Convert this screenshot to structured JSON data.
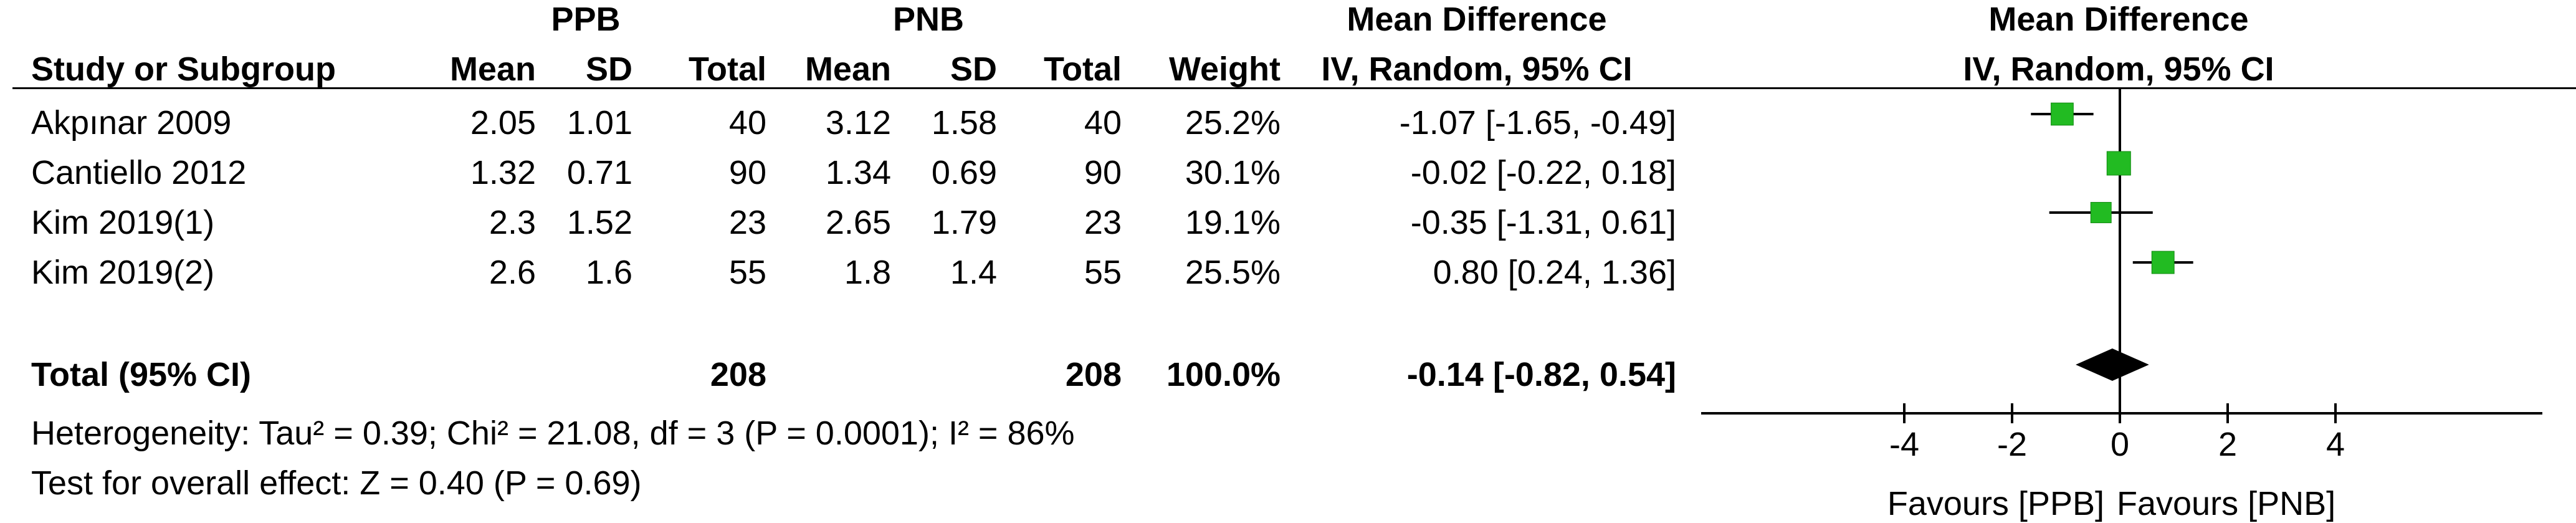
{
  "headers": {
    "group1": "PPB",
    "group2": "PNB",
    "effect_left": "Mean Difference",
    "effect_right": "Mean Difference",
    "method_left": "IV, Random, 95% CI",
    "method_right": "IV, Random, 95% CI",
    "cols": {
      "study": "Study or Subgroup",
      "mean1": "Mean",
      "sd1": "SD",
      "total1": "Total",
      "mean2": "Mean",
      "sd2": "SD",
      "total2": "Total",
      "weight": "Weight"
    }
  },
  "studies": [
    {
      "name": "Akpınar 2009",
      "mean1": "2.05",
      "sd1": "1.01",
      "total1": "40",
      "mean2": "3.12",
      "sd2": "1.58",
      "total2": "40",
      "weight": "25.2%",
      "ci_text": "-1.07 [-1.65, -0.49]"
    },
    {
      "name": "Cantiello 2012",
      "mean1": "1.32",
      "sd1": "0.71",
      "total1": "90",
      "mean2": "1.34",
      "sd2": "0.69",
      "total2": "90",
      "weight": "30.1%",
      "ci_text": "-0.02 [-0.22, 0.18]"
    },
    {
      "name": "Kim 2019(1)",
      "mean1": "2.3",
      "sd1": "1.52",
      "total1": "23",
      "mean2": "2.65",
      "sd2": "1.79",
      "total2": "23",
      "weight": "19.1%",
      "ci_text": "-0.35 [-1.31, 0.61]"
    },
    {
      "name": "Kim 2019(2)",
      "mean1": "2.6",
      "sd1": "1.6",
      "total1": "55",
      "mean2": "1.8",
      "sd2": "1.4",
      "total2": "55",
      "weight": "25.5%",
      "ci_text": "0.80 [0.24, 1.36]"
    }
  ],
  "total": {
    "label": "Total (95% CI)",
    "total1": "208",
    "total2": "208",
    "weight": "100.0%",
    "ci_text": "-0.14 [-0.82, 0.54]"
  },
  "heterogeneity": "Heterogeneity: Tau² = 0.39; Chi² = 21.08, df = 3 (P = 0.0001); I² = 86%",
  "overall_effect": "Test for overall effect: Z = 0.40 (P = 0.69)",
  "axis": {
    "favours_left": "Favours [PPB]",
    "favours_right": "Favours [PNB]"
  },
  "chart_data": {
    "type": "forest",
    "xlim": [
      -4,
      4
    ],
    "ticks": [
      -4,
      -2,
      0,
      2,
      4
    ],
    "tick_labels": [
      "-4",
      "-2",
      "0",
      "2",
      "4"
    ],
    "null_value": 0,
    "studies": [
      {
        "name": "Akpınar 2009",
        "md": -1.07,
        "lo": -1.65,
        "hi": -0.49,
        "weight": 25.2
      },
      {
        "name": "Cantiello 2012",
        "md": -0.02,
        "lo": -0.22,
        "hi": 0.18,
        "weight": 30.1
      },
      {
        "name": "Kim 2019(1)",
        "md": -0.35,
        "lo": -1.31,
        "hi": 0.61,
        "weight": 19.1
      },
      {
        "name": "Kim 2019(2)",
        "md": 0.8,
        "lo": 0.24,
        "hi": 1.36,
        "weight": 25.5
      }
    ],
    "pooled": {
      "md": -0.14,
      "lo": -0.82,
      "hi": 0.54
    },
    "colors": {
      "square": "#22bb22",
      "diamond": "#000000"
    }
  }
}
